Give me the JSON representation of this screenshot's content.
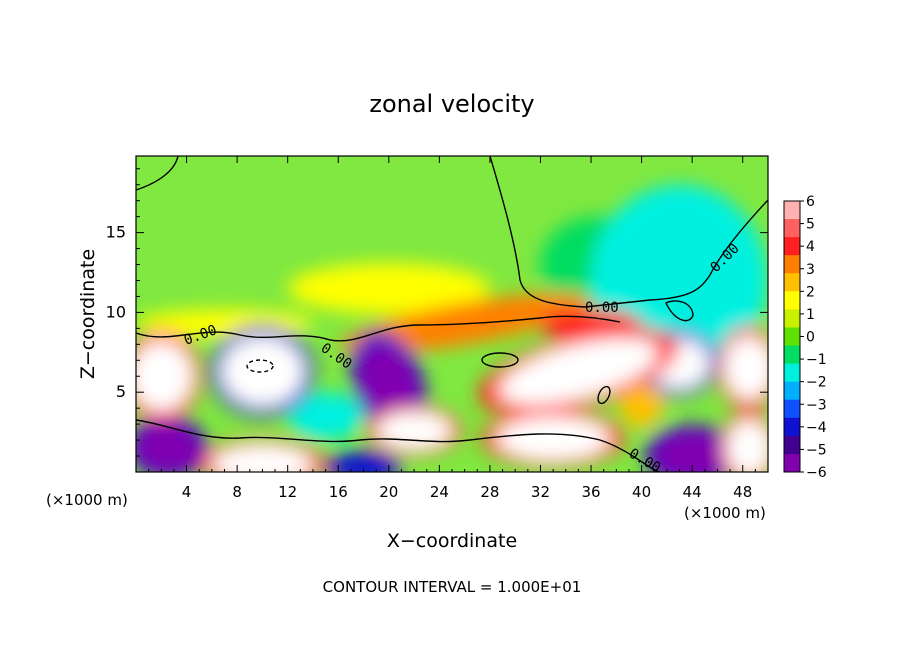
{
  "chart_data": {
    "type": "heatmap",
    "title": "zonal velocity",
    "xlabel": "X−coordinate",
    "ylabel": "Z−coordinate",
    "x_units_left": "(×1000 m)",
    "x_units_right": "(×1000 m)",
    "xlim": [
      0,
      50
    ],
    "ylim": [
      0,
      19.8
    ],
    "x_ticks": [
      4,
      8,
      12,
      16,
      20,
      24,
      28,
      32,
      36,
      40,
      44,
      48
    ],
    "y_ticks": [
      5,
      10,
      15
    ],
    "colorbar": {
      "ticks": [
        "6",
        "5",
        "4",
        "3",
        "2",
        "1",
        "0",
        "−1",
        "−2",
        "−3",
        "−4",
        "−5",
        "−6"
      ],
      "colors": [
        "#ffb0b0",
        "#ff6060",
        "#ff2020",
        "#ff8000",
        "#ffc000",
        "#ffff00",
        "#c8f000",
        "#60e000",
        "#00dd60",
        "#00f0e0",
        "#00b0ff",
        "#1050ff",
        "#1010d0",
        "#400090",
        "#8000b0"
      ]
    },
    "contour_labels": [
      "0.00",
      "0.00",
      "0.00",
      "0.00",
      "0.00"
    ],
    "footer": "CONTOUR INTERVAL = 1.000E+01",
    "features": [
      {
        "kind": "blob",
        "x": 35,
        "y": 6.3,
        "rx": 6.5,
        "ry": 1.7,
        "rot": 15,
        "value": 8
      },
      {
        "kind": "blob",
        "x": 10,
        "y": 6.3,
        "rx": 3.3,
        "ry": 2.2,
        "rot": 0,
        "value": -7
      },
      {
        "kind": "blob",
        "x": 2,
        "y": 6.0,
        "rx": 2.5,
        "ry": 2.2,
        "rot": 0,
        "value": 8
      },
      {
        "kind": "blob",
        "x": 20,
        "y": 5.5,
        "rx": 2.2,
        "ry": 2.6,
        "rot": 20,
        "value": -6
      },
      {
        "kind": "blob",
        "x": 43,
        "y": 6.8,
        "rx": 2.4,
        "ry": 1.6,
        "rot": 0,
        "value": -7
      },
      {
        "kind": "blob",
        "x": 48.5,
        "y": 6.5,
        "rx": 2.0,
        "ry": 2.0,
        "rot": 0,
        "value": 7
      },
      {
        "kind": "blob",
        "x": 40,
        "y": 5.2,
        "rx": 2.0,
        "ry": 2.5,
        "rot": 0,
        "value": 3
      },
      {
        "kind": "blob",
        "x": 22,
        "y": 2.6,
        "rx": 3.0,
        "ry": 1.2,
        "rot": 0,
        "value": 7
      },
      {
        "kind": "blob",
        "x": 33,
        "y": 2.1,
        "rx": 4.5,
        "ry": 1.4,
        "rot": 0,
        "value": 8
      },
      {
        "kind": "blob",
        "x": 15,
        "y": 3.5,
        "rx": 3.0,
        "ry": 1.5,
        "rot": 0,
        "value": -2
      },
      {
        "kind": "blob",
        "x": 2.5,
        "y": 1.5,
        "rx": 2.5,
        "ry": 1.5,
        "rot": 0,
        "value": -6
      },
      {
        "kind": "blob",
        "x": 10,
        "y": 0.5,
        "rx": 4.0,
        "ry": 1.2,
        "rot": 0,
        "value": 7
      },
      {
        "kind": "blob",
        "x": 18,
        "y": 0.3,
        "rx": 3.0,
        "ry": 1.0,
        "rot": 0,
        "value": -4
      },
      {
        "kind": "blob",
        "x": 44,
        "y": 1.0,
        "rx": 3.0,
        "ry": 1.5,
        "rot": 0,
        "value": -6
      },
      {
        "kind": "blob",
        "x": 48.5,
        "y": 1.5,
        "rx": 1.8,
        "ry": 1.8,
        "rot": 0,
        "value": 7
      },
      {
        "kind": "blob",
        "x": 7,
        "y": 9.3,
        "rx": 7.0,
        "ry": 0.9,
        "rot": 0,
        "value": 1.8
      },
      {
        "kind": "blob",
        "x": 26,
        "y": 9.3,
        "rx": 10.0,
        "ry": 1.3,
        "rot": 10,
        "value": 3.8
      },
      {
        "kind": "blob",
        "x": 20,
        "y": 11.5,
        "rx": 8.0,
        "ry": 1.6,
        "rot": 0,
        "value": 1.6
      },
      {
        "kind": "blob",
        "x": 36,
        "y": 9.2,
        "rx": 4.0,
        "ry": 1.0,
        "rot": 0,
        "value": 4
      },
      {
        "kind": "blob",
        "x": 43,
        "y": 12,
        "rx": 7.0,
        "ry": 6.0,
        "rot": 0,
        "value": -1.6
      },
      {
        "kind": "blob",
        "x": 36.5,
        "y": 13,
        "rx": 4.5,
        "ry": 3.0,
        "rot": 0,
        "value": -1.2
      }
    ]
  }
}
